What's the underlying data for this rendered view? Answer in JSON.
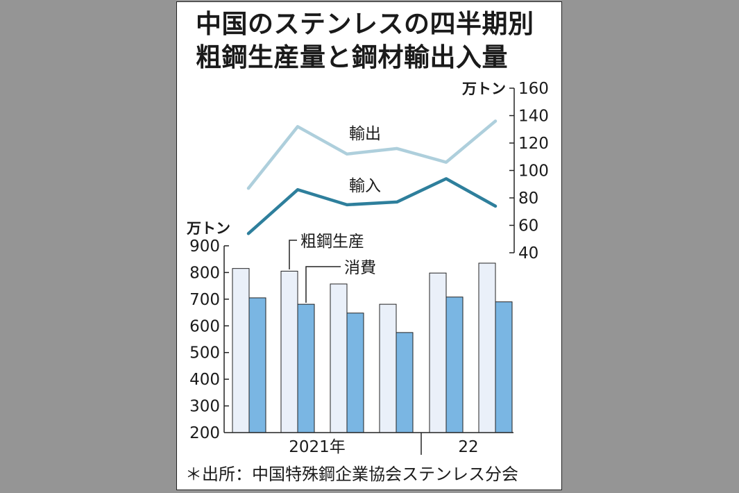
{
  "title_lines": [
    "中国のステンレスの四半期別",
    "粗鋼生産量と鋼材輸出入量"
  ],
  "source": "＊出所：中国特殊鋼企業協会ステンレス分会",
  "chart_data": [
    {
      "type": "line",
      "unit_label": "万トン",
      "ylim": [
        40,
        160
      ],
      "yticks": [
        40,
        60,
        80,
        100,
        120,
        140,
        160
      ],
      "axis_side": "right",
      "x": [
        1,
        2,
        3,
        4,
        5,
        6
      ],
      "series": [
        {
          "name": "輸出",
          "values": [
            87,
            132,
            112,
            116,
            106,
            136
          ],
          "color": "#aecfdc"
        },
        {
          "name": "輸入",
          "values": [
            54,
            86,
            75,
            77,
            94,
            74
          ],
          "color": "#2e7f9c"
        }
      ]
    },
    {
      "type": "bar",
      "unit_label": "万トン",
      "ylim": [
        200,
        900
      ],
      "yticks": [
        200,
        300,
        400,
        500,
        600,
        700,
        800,
        900
      ],
      "axis_side": "left",
      "categories": [
        "2021年",
        "",
        "",
        "",
        "22",
        ""
      ],
      "x_labels": [
        "2021年",
        "22"
      ],
      "series": [
        {
          "name": "粗鋼生産",
          "values": [
            815,
            805,
            757,
            681,
            798,
            835
          ],
          "color": "#eaf0f9"
        },
        {
          "name": "消費",
          "values": [
            705,
            681,
            648,
            575,
            708,
            690
          ],
          "color": "#7ab6e3"
        }
      ]
    }
  ]
}
